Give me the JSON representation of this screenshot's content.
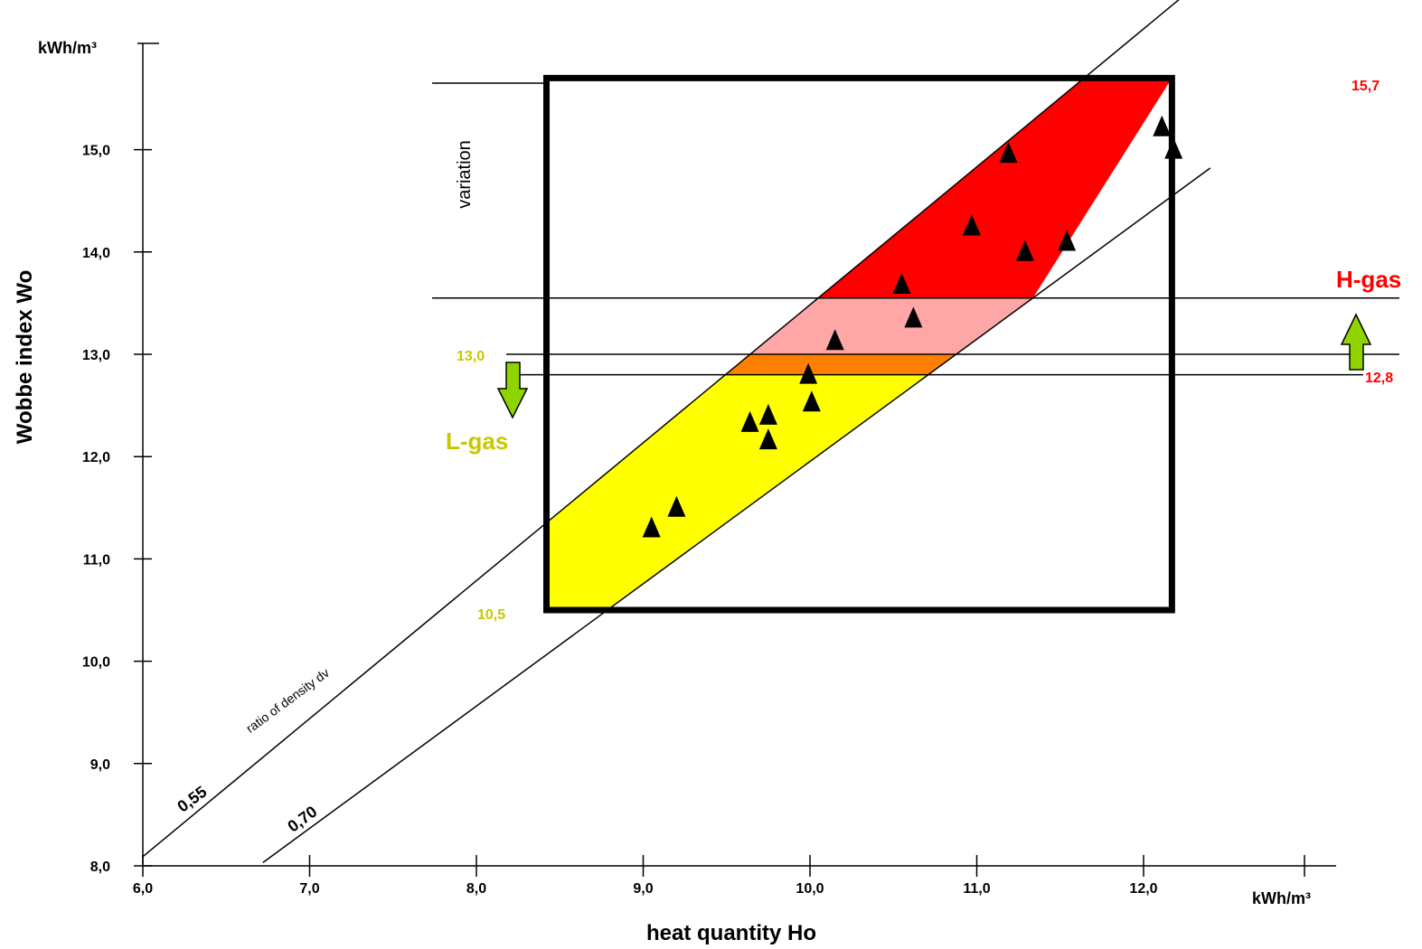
{
  "chart_data": {
    "type": "scatter",
    "xlabel": "heat quantity Ho",
    "ylabel": "Wobbe index  Wo",
    "x_unit": "kWh/m³",
    "y_unit": "kWh/m³",
    "xlim": [
      6.0,
      12.2
    ],
    "ylim": [
      8.0,
      15.7
    ],
    "x_ticks": [
      "6,0",
      "7,0",
      "8,0",
      "9,0",
      "10,0",
      "11,0",
      "12,0"
    ],
    "y_ticks": [
      "8,0",
      "9,0",
      "10,0",
      "11,0",
      "12,0",
      "13,0",
      "14,0",
      "15,0"
    ],
    "density_lines": [
      {
        "label": "0,55",
        "dv": 0.55
      },
      {
        "label": "0,70",
        "dv": 0.7
      }
    ],
    "density_caption": "ratio of density  dv",
    "variation_label": "variation",
    "box": {
      "x_min": 8.42,
      "x_max": 12.17,
      "y_min": 10.5,
      "y_max": 15.7
    },
    "limits": {
      "box_top": "15,7",
      "h_gas_min": "12,8",
      "l_gas_max": "13,0",
      "box_bottom": "10,5"
    },
    "bands": [
      {
        "name": "H-gas",
        "color": "#ff0000",
        "y_from": 13.55,
        "y_to": 15.7
      },
      {
        "name": "transition",
        "color": "#ffa6a6",
        "y_from": 13.0,
        "y_to": 13.55
      },
      {
        "name": "overlap",
        "color": "#ff8000",
        "y_from": 12.8,
        "y_to": 13.0
      },
      {
        "name": "L-gas",
        "color": "#ffff00",
        "y_from": 10.5,
        "y_to": 12.8
      }
    ],
    "gas_labels": {
      "h_gas": "H-gas",
      "l_gas": "L-gas"
    },
    "points": [
      {
        "x": 9.05,
        "y": 11.3
      },
      {
        "x": 9.2,
        "y": 11.5
      },
      {
        "x": 9.64,
        "y": 12.33
      },
      {
        "x": 9.75,
        "y": 12.4
      },
      {
        "x": 9.75,
        "y": 12.16
      },
      {
        "x": 9.99,
        "y": 12.8
      },
      {
        "x": 10.01,
        "y": 12.53
      },
      {
        "x": 10.15,
        "y": 13.13
      },
      {
        "x": 10.55,
        "y": 13.68
      },
      {
        "x": 10.62,
        "y": 13.35
      },
      {
        "x": 10.97,
        "y": 14.25
      },
      {
        "x": 11.19,
        "y": 14.96
      },
      {
        "x": 11.29,
        "y": 14.0
      },
      {
        "x": 11.54,
        "y": 14.1
      },
      {
        "x": 12.11,
        "y": 15.22
      },
      {
        "x": 12.18,
        "y": 15.0
      }
    ],
    "colors": {
      "h_gas": "#ff0000",
      "l_gas": "#c8c800",
      "arrow": "#8fd400"
    }
  }
}
